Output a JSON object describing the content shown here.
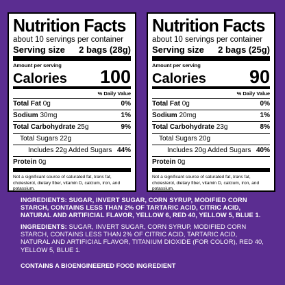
{
  "panels": [
    {
      "title": "Nutrition Facts",
      "servings": "about 10 servings per container",
      "serving_size_label": "Serving size",
      "serving_size_value": "2 bags (28g)",
      "amount_per": "Amount per serving",
      "calories_label": "Calories",
      "calories_value": "100",
      "dv_header": "% Daily Value",
      "rows": {
        "fat_label": "Total Fat",
        "fat_amt": "0g",
        "fat_dv": "0%",
        "sodium_label": "Sodium",
        "sodium_amt": "30mg",
        "sodium_dv": "1%",
        "carb_label": "Total Carbohydrate",
        "carb_amt": "25g",
        "carb_dv": "9%",
        "sugars": "Total Sugars 22g",
        "added": "Includes 22g Added Sugars",
        "added_dv": "44%",
        "protein_label": "Protein",
        "protein_amt": "0g"
      },
      "footnote_a": "Not a significant source of saturated fat,",
      "footnote_trans": "trans",
      "footnote_b": "fat, cholesterol, dietary fiber, vitamin D, calcium, iron, and potassium."
    },
    {
      "title": "Nutrition Facts",
      "servings": "about 10 servings per container",
      "serving_size_label": "Serving size",
      "serving_size_value": "2 bags (25g)",
      "amount_per": "Amount per serving",
      "calories_label": "Calories",
      "calories_value": "90",
      "dv_header": "% Daily Value",
      "rows": {
        "fat_label": "Total Fat",
        "fat_amt": "0g",
        "fat_dv": "0%",
        "sodium_label": "Sodium",
        "sodium_amt": "20mg",
        "sodium_dv": "1%",
        "carb_label": "Total Carbohydrate",
        "carb_amt": "23g",
        "carb_dv": "8%",
        "sugars": "Total Sugars 20g",
        "added": "Includes 20g Added Sugars",
        "added_dv": "40%",
        "protein_label": "Protein",
        "protein_amt": "0g"
      },
      "footnote_a": "Not a significant source of saturated fat,",
      "footnote_trans": "trans",
      "footnote_b": "fat, cholesterol, dietary fiber, vitamin D, calcium, iron, and potassium."
    }
  ],
  "ingredients_1": "INGREDIENTS: SUGAR, INVERT SUGAR, CORN SYRUP, MODIFIED CORN STARCH, CONTAINS LESS THAN 2% OF TARTARIC ACID, CITRIC ACID, NATURAL AND ARTIFICIAL FLAVOR, YELLOW 6, RED 40, YELLOW 5, BLUE 1.",
  "ingredients_2_lead": "INGREDIENTS:",
  "ingredients_2_body": "SUGAR, INVERT SUGAR, CORN SYRUP, MODIFIED CORN STARCH, CONTAINS LESS THAN 2% OF CITRIC ACID, TARTARIC ACID, NATURAL AND ARTIFICIAL FLAVOR, TITANIUM DIOXIDE (FOR COLOR), RED 40, YELLOW 5, BLUE 1.",
  "bioengineered": "CONTAINS A BIOENGINEERED FOOD INGREDIENT",
  "colors": {
    "background": "#5b2d91",
    "panel": "#ffffff",
    "text_on_bg": "#ffffff"
  }
}
